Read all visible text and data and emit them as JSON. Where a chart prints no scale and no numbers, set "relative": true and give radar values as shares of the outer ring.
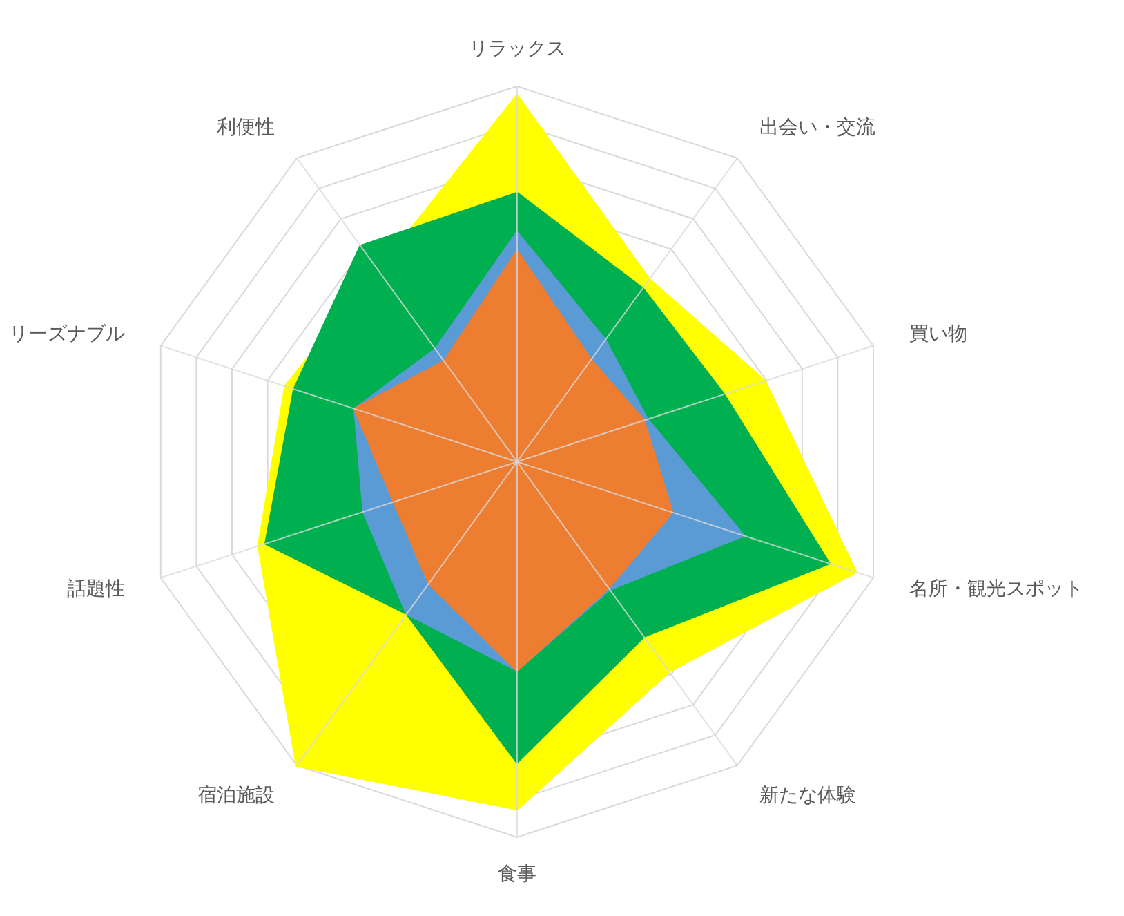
{
  "chart_data": {
    "type": "radar",
    "relative": true,
    "grid": true,
    "categories": [
      "リラックス",
      "出会い・交流",
      "買い物",
      "名所・観光スポット",
      "新たな体験",
      "食事",
      "宿泊施設",
      "話題性",
      "リーズナブル",
      "利便性"
    ],
    "series": [
      {
        "color": "#ffff00",
        "values": [
          0.975,
          0.6,
          0.695,
          0.95,
          0.69,
          0.925,
          1.0,
          0.725,
          0.65,
          0.63
        ]
      },
      {
        "color": "#00b050",
        "values": [
          0.715,
          0.57,
          0.58,
          0.875,
          0.575,
          0.8,
          0.5,
          0.705,
          0.625,
          0.71
        ]
      },
      {
        "color": "#5b9bd5",
        "values": [
          0.61,
          0.4,
          0.365,
          0.635,
          0.42,
          0.555,
          0.5,
          0.43,
          0.455,
          0.37
        ]
      },
      {
        "color": "#ed7d31",
        "values": [
          0.56,
          0.335,
          0.355,
          0.435,
          0.415,
          0.555,
          0.4,
          0.345,
          0.455,
          0.33
        ]
      }
    ]
  }
}
